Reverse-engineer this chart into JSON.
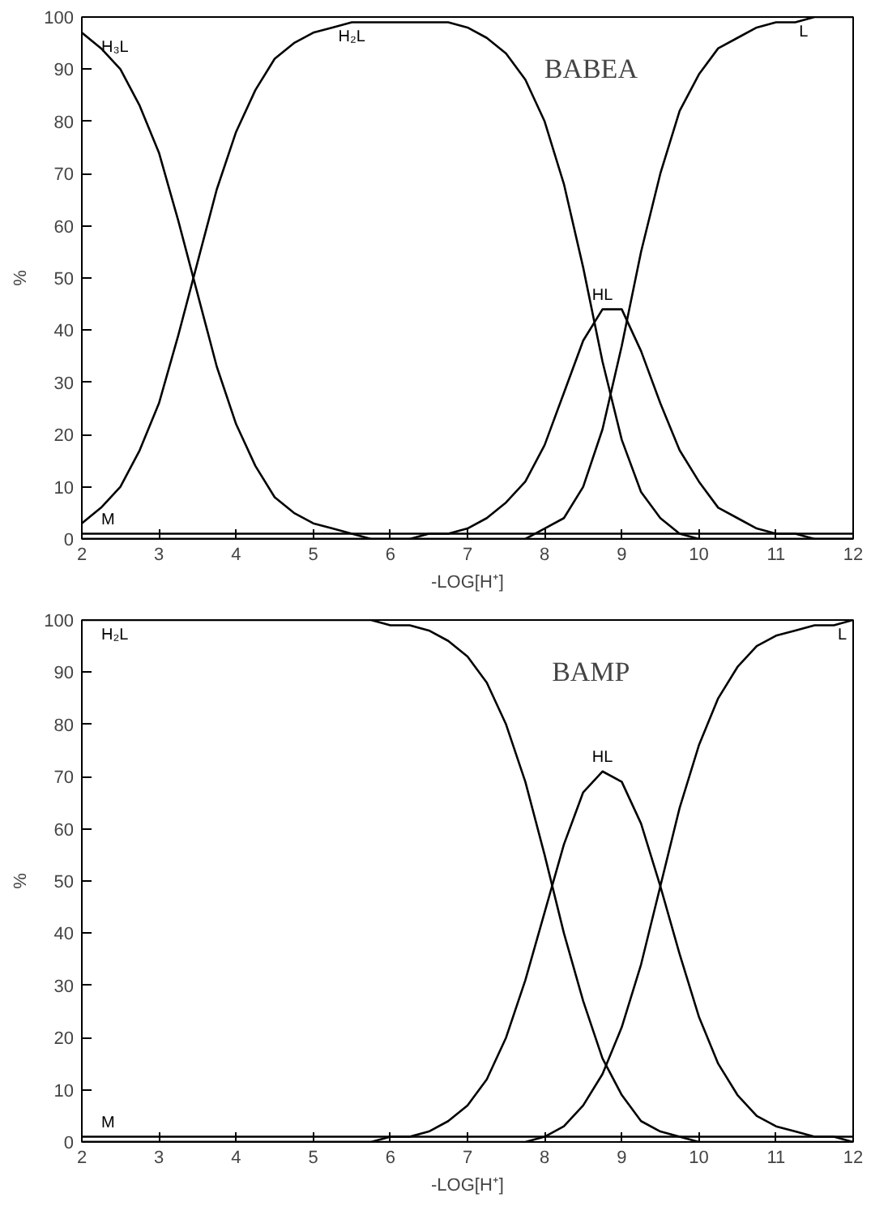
{
  "chart_data": [
    {
      "type": "line",
      "title": "BABEA",
      "xlabel": "-LOG[H⁺]",
      "ylabel": "%",
      "xlim": [
        2,
        12
      ],
      "ylim": [
        0,
        100
      ],
      "xticks": [
        2,
        3,
        4,
        5,
        6,
        7,
        8,
        9,
        10,
        11,
        12
      ],
      "yticks": [
        0,
        10,
        20,
        30,
        40,
        50,
        60,
        70,
        80,
        90,
        100
      ],
      "grid": false,
      "marker": "none",
      "line_style": "solid",
      "x": [
        2,
        2.25,
        2.5,
        2.75,
        3,
        3.25,
        3.5,
        3.75,
        4,
        4.25,
        4.5,
        4.75,
        5,
        5.25,
        5.5,
        5.75,
        6,
        6.25,
        6.5,
        6.75,
        7,
        7.25,
        7.5,
        7.75,
        8,
        8.25,
        8.5,
        8.75,
        9,
        9.25,
        9.5,
        9.75,
        10,
        10.25,
        10.5,
        10.75,
        11,
        11.25,
        11.5,
        11.75,
        12
      ],
      "series": [
        {
          "name": "H₃L",
          "color": "#000000",
          "values": [
            97,
            94,
            90,
            83,
            74,
            61,
            47,
            33,
            22,
            14,
            8,
            5,
            3,
            2,
            1,
            0,
            0,
            0,
            0,
            0,
            0,
            0,
            0,
            0,
            0,
            0,
            0,
            0,
            0,
            0,
            0,
            0,
            0,
            0,
            0,
            0,
            0,
            0,
            0,
            0,
            0
          ]
        },
        {
          "name": "H₂L",
          "color": "#000000",
          "values": [
            3,
            6,
            10,
            17,
            26,
            39,
            53,
            67,
            78,
            86,
            92,
            95,
            97,
            98,
            99,
            99,
            99,
            99,
            99,
            99,
            98,
            96,
            93,
            88,
            80,
            68,
            52,
            34,
            19,
            9,
            4,
            1,
            0,
            0,
            0,
            0,
            0,
            0,
            0,
            0,
            0
          ]
        },
        {
          "name": "HL",
          "color": "#000000",
          "values": [
            0,
            0,
            0,
            0,
            0,
            0,
            0,
            0,
            0,
            0,
            0,
            0,
            0,
            0,
            0,
            0,
            0,
            0,
            1,
            1,
            2,
            4,
            7,
            11,
            18,
            28,
            38,
            44,
            44,
            36,
            26,
            17,
            11,
            6,
            4,
            2,
            1,
            1,
            0,
            0,
            0
          ]
        },
        {
          "name": "L",
          "color": "#000000",
          "values": [
            0,
            0,
            0,
            0,
            0,
            0,
            0,
            0,
            0,
            0,
            0,
            0,
            0,
            0,
            0,
            0,
            0,
            0,
            0,
            0,
            0,
            0,
            0,
            0,
            2,
            4,
            10,
            21,
            37,
            55,
            70,
            82,
            89,
            94,
            96,
            98,
            99,
            99,
            100,
            100,
            100
          ]
        },
        {
          "name": "M",
          "color": "#000000",
          "values": [
            1,
            1,
            1,
            1,
            1,
            1,
            1,
            1,
            1,
            1,
            1,
            1,
            1,
            1,
            1,
            1,
            1,
            1,
            1,
            1,
            1,
            1,
            1,
            1,
            1,
            1,
            1,
            1,
            1,
            1,
            1,
            1,
            1,
            1,
            1,
            1,
            1,
            1,
            1,
            1,
            1
          ]
        }
      ]
    },
    {
      "type": "line",
      "title": "BAMP",
      "xlabel": "-LOG[H⁺]",
      "ylabel": "%",
      "xlim": [
        2,
        12
      ],
      "ylim": [
        0,
        100
      ],
      "xticks": [
        2,
        3,
        4,
        5,
        6,
        7,
        8,
        9,
        10,
        11,
        12
      ],
      "yticks": [
        0,
        10,
        20,
        30,
        40,
        50,
        60,
        70,
        80,
        90,
        100
      ],
      "grid": false,
      "marker": "none",
      "line_style": "solid",
      "x": [
        2,
        2.25,
        2.5,
        2.75,
        3,
        3.25,
        3.5,
        3.75,
        4,
        4.25,
        4.5,
        4.75,
        5,
        5.25,
        5.5,
        5.75,
        6,
        6.25,
        6.5,
        6.75,
        7,
        7.25,
        7.5,
        7.75,
        8,
        8.25,
        8.5,
        8.75,
        9,
        9.25,
        9.5,
        9.75,
        10,
        10.25,
        10.5,
        10.75,
        11,
        11.25,
        11.5,
        11.75,
        12
      ],
      "series": [
        {
          "name": "H₂L",
          "color": "#000000",
          "values": [
            100,
            100,
            100,
            100,
            100,
            100,
            100,
            100,
            100,
            100,
            100,
            100,
            100,
            100,
            100,
            100,
            99,
            99,
            98,
            96,
            93,
            88,
            80,
            69,
            55,
            40,
            27,
            16,
            9,
            4,
            2,
            1,
            0,
            0,
            0,
            0,
            0,
            0,
            0,
            0,
            0
          ]
        },
        {
          "name": "HL",
          "color": "#000000",
          "values": [
            0,
            0,
            0,
            0,
            0,
            0,
            0,
            0,
            0,
            0,
            0,
            0,
            0,
            0,
            0,
            0,
            1,
            1,
            2,
            4,
            7,
            12,
            20,
            31,
            44,
            57,
            67,
            71,
            69,
            61,
            49,
            36,
            24,
            15,
            9,
            5,
            3,
            2,
            1,
            1,
            0
          ]
        },
        {
          "name": "L",
          "color": "#000000",
          "values": [
            0,
            0,
            0,
            0,
            0,
            0,
            0,
            0,
            0,
            0,
            0,
            0,
            0,
            0,
            0,
            0,
            0,
            0,
            0,
            0,
            0,
            0,
            0,
            0,
            1,
            3,
            7,
            13,
            22,
            34,
            49,
            64,
            76,
            85,
            91,
            95,
            97,
            98,
            99,
            99,
            100
          ]
        },
        {
          "name": "M",
          "color": "#000000",
          "values": [
            1,
            1,
            1,
            1,
            1,
            1,
            1,
            1,
            1,
            1,
            1,
            1,
            1,
            1,
            1,
            1,
            1,
            1,
            1,
            1,
            1,
            1,
            1,
            1,
            1,
            1,
            1,
            1,
            1,
            1,
            1,
            1,
            1,
            1,
            1,
            1,
            1,
            1,
            1,
            1,
            1
          ]
        }
      ]
    }
  ]
}
